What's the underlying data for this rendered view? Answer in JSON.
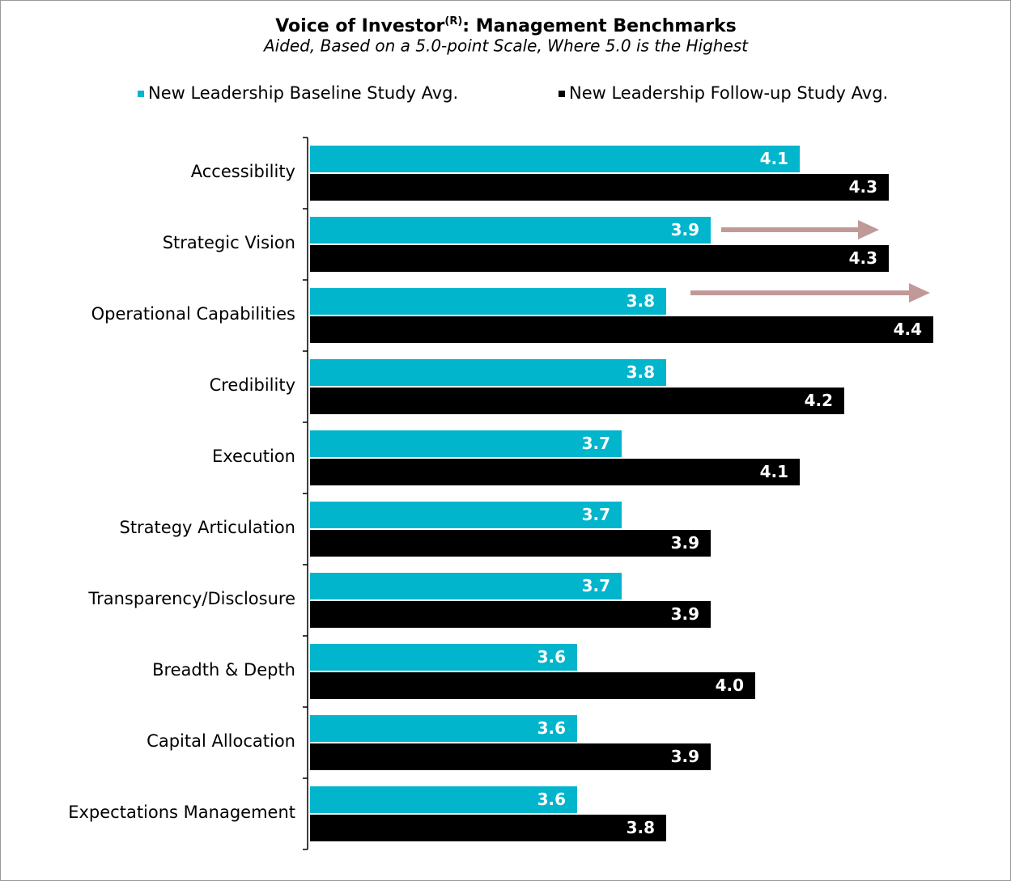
{
  "chart_data": {
    "type": "barh",
    "title": [
      "Voice of Investor",
      "(R)",
      ": Management Benchmarks"
    ],
    "subtitle": "Aided, Based on a 5.0-point Scale, Where 5.0 is the Highest",
    "categories": [
      "Accessibility",
      "Strategic Vision",
      "Operational Capabilities",
      "Credibility",
      "Execution",
      "Strategy Articulation",
      "Transparency/Disclosure",
      "Breadth & Depth",
      "Capital Allocation",
      "Expectations Management"
    ],
    "series": [
      {
        "name": "New Leadership Baseline Study Avg.",
        "color": "#00b5cc",
        "values": [
          4.1,
          3.9,
          3.8,
          3.8,
          3.7,
          3.7,
          3.7,
          3.6,
          3.6,
          3.6
        ],
        "value_labels": [
          "4.1",
          "3.9",
          "3.8",
          "3.8",
          "3.7",
          "3.7",
          "3.7",
          "3.6",
          "3.6",
          "3.6"
        ]
      },
      {
        "name": "New Leadership Follow-up Study Avg.",
        "color": "#000000",
        "values": [
          4.3,
          4.3,
          4.4,
          4.2,
          4.1,
          3.9,
          3.9,
          4.0,
          3.9,
          3.8
        ],
        "value_labels": [
          "4.3",
          "4.3",
          "4.4",
          "4.2",
          "4.1",
          "3.9",
          "3.9",
          "4.0",
          "3.9",
          "3.8"
        ]
      }
    ],
    "xlim": [
      3.0,
      4.5
    ]
  }
}
